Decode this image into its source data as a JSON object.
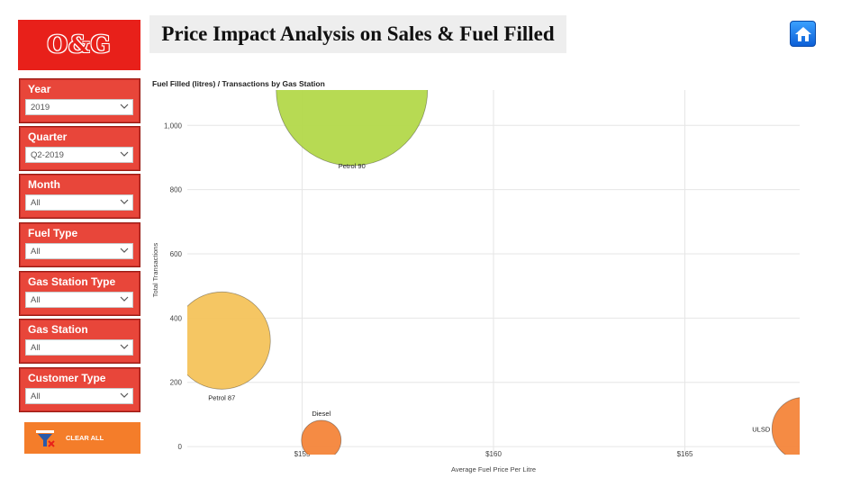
{
  "header": {
    "logo_text": "O&G",
    "title": "Price Impact Analysis on Sales & Fuel Filled",
    "home_icon": "home-icon"
  },
  "slicers": [
    {
      "label": "Year",
      "value": "2019"
    },
    {
      "label": "Quarter",
      "value": "Q2-2019"
    },
    {
      "label": "Month",
      "value": "All"
    },
    {
      "label": "Fuel Type",
      "value": "All"
    },
    {
      "label": "Gas Station Type",
      "value": "All"
    },
    {
      "label": "Gas Station",
      "value": "All"
    },
    {
      "label": "Customer Type",
      "value": "All"
    }
  ],
  "clear_button": {
    "label": "CLEAR ALL",
    "icon": "clear-filter-icon"
  },
  "colors": {
    "brand_red": "#e8201a",
    "slicer_red": "#e8463a",
    "clear_orange": "#f47d2a"
  },
  "chart_data": {
    "type": "scatter",
    "title": "Fuel Filled (litres) / Transactions by Gas Station",
    "xlabel": "Average Fuel Price Per Litre",
    "ylabel": "Total Transactions",
    "xlim": [
      152,
      168
    ],
    "ylim": [
      -25,
      1110
    ],
    "xticks": [
      {
        "value": 155,
        "label": "$155"
      },
      {
        "value": 160,
        "label": "$160"
      },
      {
        "value": 165,
        "label": "$165"
      }
    ],
    "yticks": [
      {
        "value": 0,
        "label": "0"
      },
      {
        "value": 200,
        "label": "200"
      },
      {
        "value": 400,
        "label": "400"
      },
      {
        "value": 600,
        "label": "600"
      },
      {
        "value": 800,
        "label": "800"
      },
      {
        "value": 1000,
        "label": "1,000"
      }
    ],
    "grid": true,
    "points": [
      {
        "label": "Petrol 90",
        "x": 156.3,
        "y": 1110,
        "color": "#b3d84a"
      },
      {
        "label": "Petrol 87",
        "x": 152.9,
        "y": 330,
        "color": "#f4c35b"
      },
      {
        "label": "Diesel",
        "x": 155.5,
        "y": 20,
        "color": "#f4853a"
      },
      {
        "label": "ULSD",
        "x": 168.1,
        "y": 55,
        "color": "#f4853a"
      }
    ]
  }
}
